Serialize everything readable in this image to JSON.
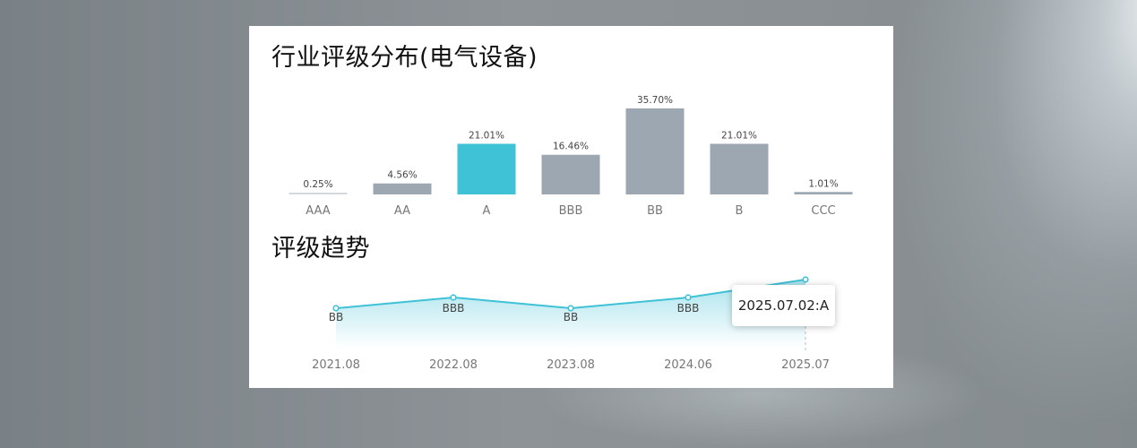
{
  "chart_data": [
    {
      "type": "bar",
      "title": "行业评级分布(电气设备)",
      "categories": [
        "AAA",
        "AA",
        "A",
        "BBB",
        "BB",
        "B",
        "CCC"
      ],
      "values": [
        0.25,
        4.56,
        21.01,
        16.46,
        35.7,
        21.01,
        1.01
      ],
      "data_labels": [
        "0.25%",
        "4.56%",
        "21.01%",
        "16.46%",
        "35.70%",
        "21.01%",
        "1.01%"
      ],
      "highlighted_category": "A",
      "colors": {
        "default": "#9ca7b2",
        "highlight": "#3fc1d6",
        "lowest": "#d3d8dc"
      },
      "grid": false
    },
    {
      "type": "area",
      "title": "评级趋势",
      "x": [
        "2021.08",
        "2022.08",
        "2023.08",
        "2024.06",
        "2025.07"
      ],
      "values": [
        "BB",
        "BBB",
        "BB",
        "BBB",
        "A"
      ],
      "point_labels": [
        "BB",
        "BBB",
        "BB",
        "BBB"
      ],
      "tooltip": "2025.07.02:A",
      "color": "#3fc1d6",
      "grid": false
    }
  ]
}
